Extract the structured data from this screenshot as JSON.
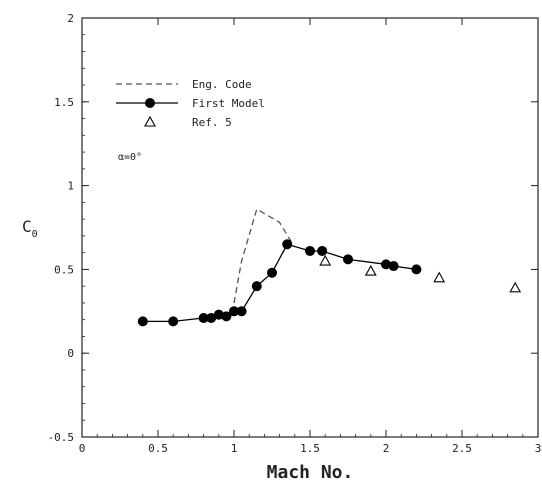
{
  "chart_data": {
    "type": "line",
    "xlabel": "Mach No.",
    "ylabel": "C",
    "ylabel_sub": "0",
    "xlim": [
      0,
      3
    ],
    "ylim": [
      -0.5,
      2
    ],
    "x_ticks": [
      0,
      0.5,
      1,
      1.5,
      2,
      2.5,
      3
    ],
    "x_tick_labels": [
      "0",
      "0.5",
      "1",
      "1.5",
      "2",
      "2.5",
      "3"
    ],
    "y_ticks": [
      -0.5,
      0,
      0.5,
      1,
      1.5,
      2
    ],
    "y_tick_labels": [
      "-0.5",
      "0",
      "0.5",
      "1",
      "1.5",
      "2"
    ],
    "grid": false,
    "legend_position": "top-left",
    "annotation": "α=0°",
    "series": [
      {
        "name": "Eng. Code",
        "style": "dashed",
        "color": "#555555",
        "x": [
          1.0,
          1.05,
          1.15,
          1.3,
          1.38
        ],
        "y": [
          0.3,
          0.55,
          0.86,
          0.78,
          0.66
        ]
      },
      {
        "name": "First Model",
        "style": "solid-filled-circle",
        "color": "#000000",
        "x": [
          0.4,
          0.6,
          0.8,
          0.85,
          0.9,
          0.95,
          1.0,
          1.05,
          1.15,
          1.25,
          1.35,
          1.5,
          1.58,
          1.75,
          2.0,
          2.05,
          2.2
        ],
        "y": [
          0.19,
          0.19,
          0.21,
          0.21,
          0.23,
          0.22,
          0.25,
          0.25,
          0.4,
          0.48,
          0.65,
          0.61,
          0.61,
          0.56,
          0.53,
          0.52,
          0.5
        ]
      },
      {
        "name": "Ref. 5",
        "style": "open-triangle",
        "color": "#000000",
        "x": [
          1.6,
          1.9,
          2.35,
          2.85
        ],
        "y": [
          0.55,
          0.49,
          0.45,
          0.39
        ]
      }
    ]
  }
}
